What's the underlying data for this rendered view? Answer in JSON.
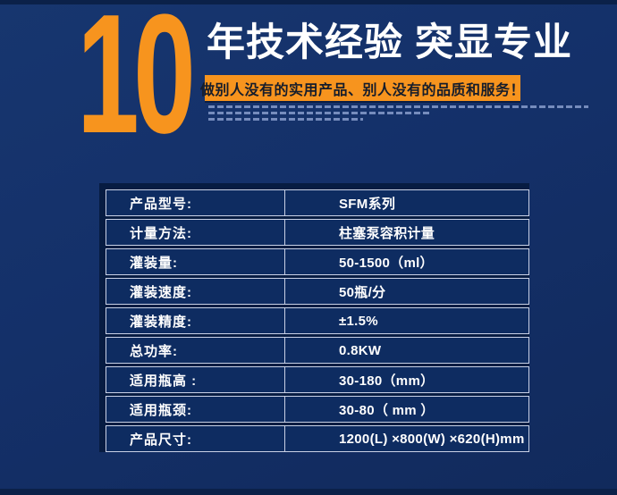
{
  "hero": {
    "big_number": "10",
    "headline": "年技术经验 突显专业",
    "tagline": "做别人没有的实用产品、别人没有的品质和服务！"
  },
  "colors": {
    "accent_orange": "#F7941E",
    "background_navy": "#14316B",
    "table_row_fill": "#0E2C61",
    "table_border": "#C9D1E6",
    "table_shadow": "#071C42",
    "headline_text": "#FFFFFF",
    "tagline_text": "#161D2B"
  },
  "spec_table": {
    "rows": [
      {
        "label": "产品型号:",
        "value": "SFM系列"
      },
      {
        "label": "计量方法:",
        "value": "柱塞泵容积计量"
      },
      {
        "label": "灌装量:",
        "value": "50-1500（ml）"
      },
      {
        "label": "灌装速度:",
        "value": "50瓶/分"
      },
      {
        "label": "灌装精度:",
        "value": "±1.5%"
      },
      {
        "label": "总功率:",
        "value": "0.8KW"
      },
      {
        "label": "适用瓶高 :",
        "value": "30-180（mm）"
      },
      {
        "label": "适用瓶颈:",
        "value": "30-80（ mm ）"
      },
      {
        "label": "产品尺寸:",
        "value": "1200(L) ×800(W) ×620(H)mm"
      }
    ]
  }
}
